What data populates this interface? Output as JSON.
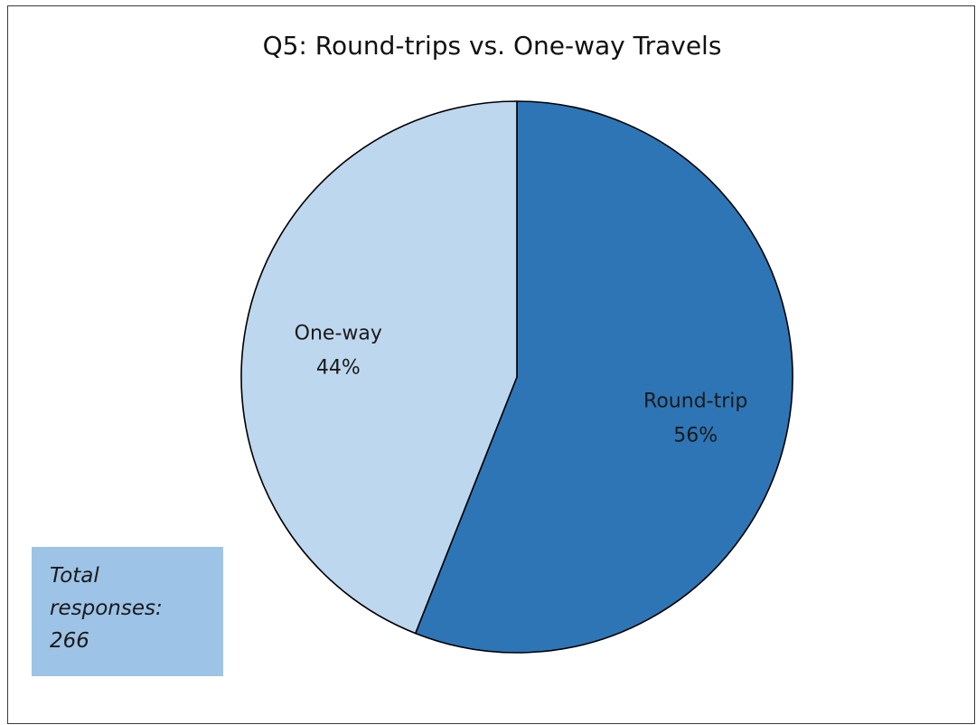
{
  "chart_data": {
    "type": "pie",
    "title": "Q5: Round-trips vs. One-way Travels",
    "slices": [
      {
        "label": "Round-trip",
        "value": 56,
        "value_label": "56%",
        "color": "#2e75b6"
      },
      {
        "label": "One-way",
        "value": 44,
        "value_label": "44%",
        "color": "#bdd7ee"
      }
    ],
    "start_angle": "12 o'clock",
    "direction": "clockwise",
    "legend": "none"
  },
  "note": {
    "lines": [
      "Total",
      "responses:",
      "266"
    ],
    "background": "#9dc3e6"
  }
}
